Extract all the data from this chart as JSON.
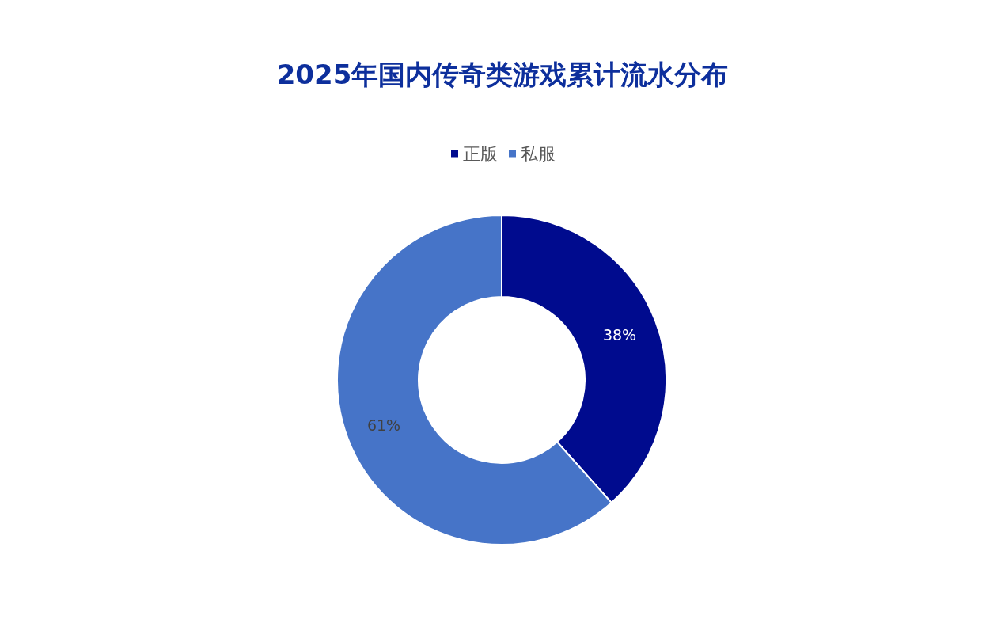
{
  "chart_data": {
    "type": "donut",
    "title": "2025年国内传奇类游戏累计流水分布",
    "categories": [
      "正版",
      "私服"
    ],
    "values": [
      38,
      61
    ],
    "colors": [
      "#000b8e",
      "#4674c8"
    ],
    "value_labels": [
      "38%",
      "61%"
    ],
    "legend": "top"
  }
}
